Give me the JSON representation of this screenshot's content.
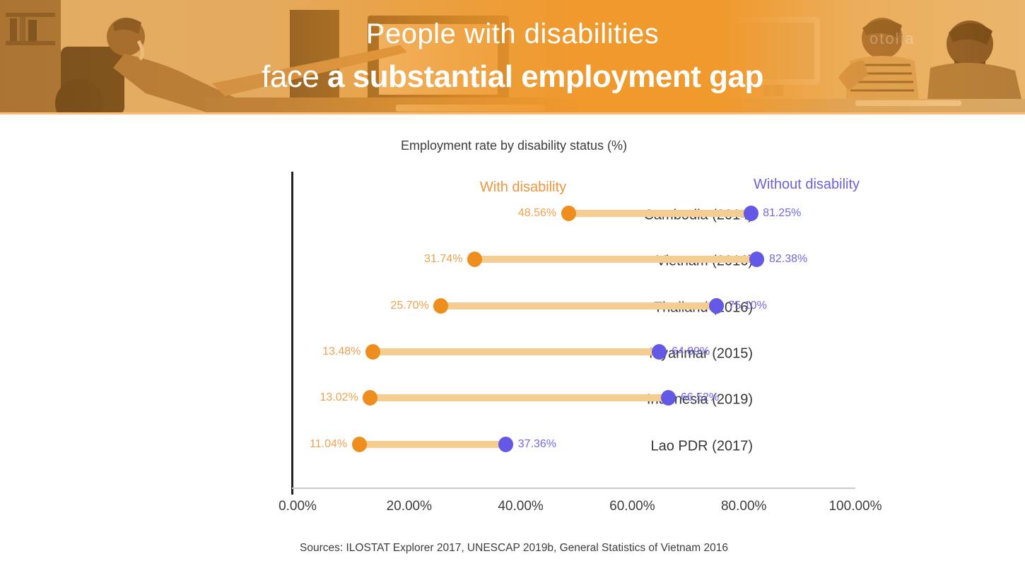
{
  "header": {
    "title_line1": "People with disabilities",
    "title_line2_light": "face",
    "title_line2_bold": "a substantial employment gap",
    "banner_color": "#F0992D",
    "watermark": "otolia"
  },
  "chart_data": {
    "type": "dumbbell",
    "title": "Employment rate by disability status (%)",
    "xlabel": "",
    "ylabel": "",
    "xlim": [
      0,
      100
    ],
    "x_ticks": [
      "0.00%",
      "20.00%",
      "40.00%",
      "60.00%",
      "80.00%",
      "100.00%"
    ],
    "legend_position": "above first row, labels colored by series",
    "grid": false,
    "series_names": {
      "with": "With disability",
      "without": "Without disability"
    },
    "series_colors": {
      "with": "#EE8E1E",
      "without": "#6458E7",
      "connector": "#F6CD90"
    },
    "categories": [
      "Cambodia (2014)",
      "Vietnam (2016)",
      "Thailand (2016)",
      "Myanmar (2015)",
      "Indonesia (2019)",
      "Lao PDR (2017)"
    ],
    "rows": [
      {
        "category": "Cambodia (2014)",
        "with_value": 48.56,
        "with_label": "48.56%",
        "without_value": 81.25,
        "without_label": "81.25%"
      },
      {
        "category": "Vietnam (2016)",
        "with_value": 31.74,
        "with_label": "31.74%",
        "without_value": 82.38,
        "without_label": "82.38%"
      },
      {
        "category": "Thailand (2016)",
        "with_value": 25.7,
        "with_label": "25.70%",
        "without_value": 75.1,
        "without_label": "75.10%"
      },
      {
        "category": "Myanmar (2015)",
        "with_value": 13.48,
        "with_label": "13.48%",
        "without_value": 64.89,
        "without_label": "64.89%"
      },
      {
        "category": "Indonesia (2019)",
        "with_value": 13.02,
        "with_label": "13.02%",
        "without_value": 66.52,
        "without_label": "66.52%"
      },
      {
        "category": "Lao PDR (2017)",
        "with_value": 11.04,
        "with_label": "11.04%",
        "without_value": 37.36,
        "without_label": "37.36%"
      }
    ],
    "source": "Sources: ILOSTAT Explorer 2017, UNESCAP 2019b, General Statistics of Vietnam 2016"
  }
}
